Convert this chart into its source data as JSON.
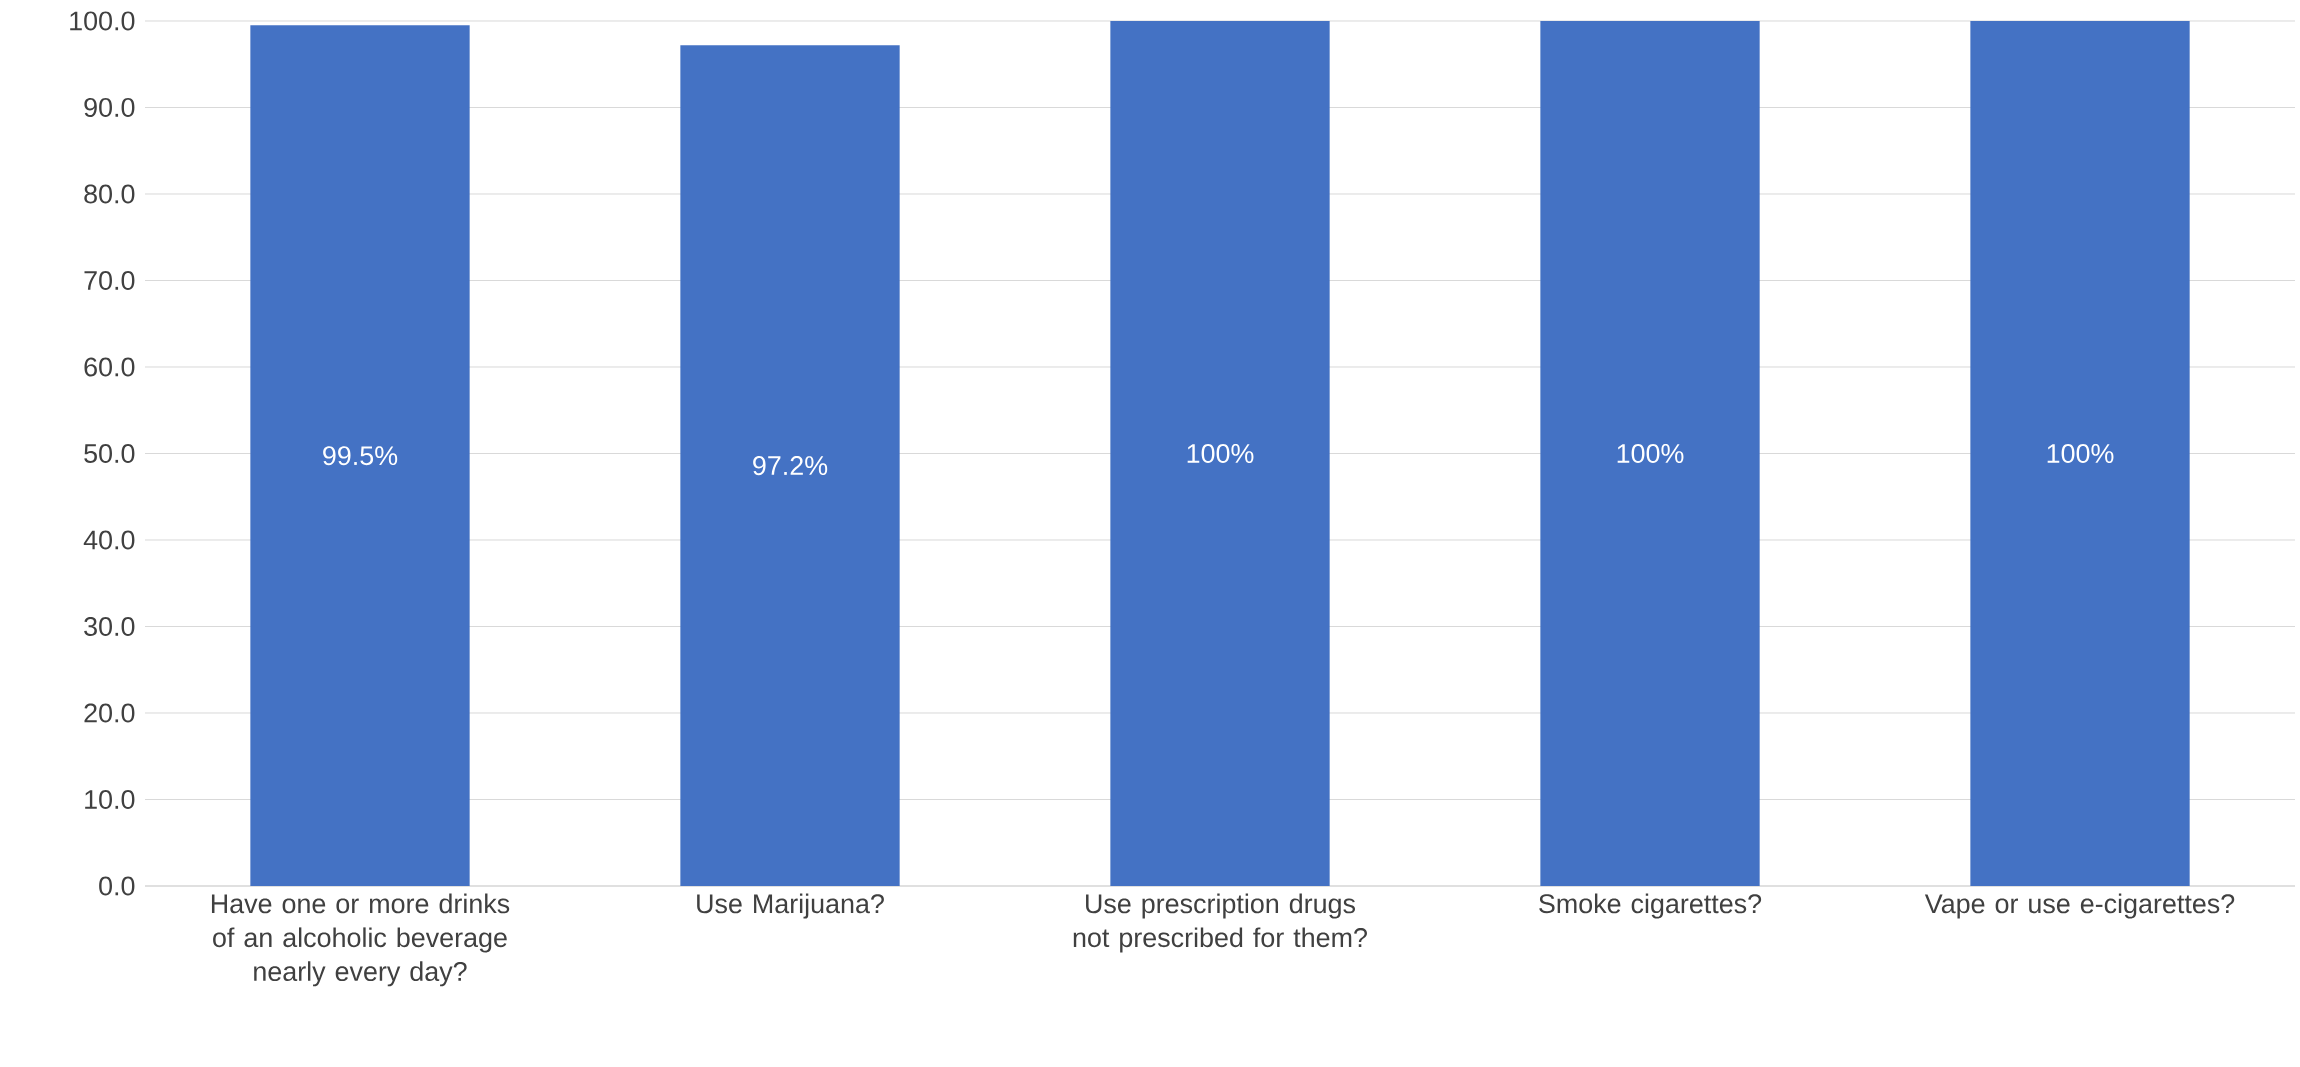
{
  "chart_data": {
    "type": "bar",
    "categories": [
      "Have one or more drinks of an alcoholic beverage nearly every day?",
      "Use Marijuana?",
      "Use prescription drugs not prescribed for them?",
      "Smoke cigarettes?",
      "Vape or use e-cigarettes?"
    ],
    "values": [
      99.5,
      97.2,
      100,
      100,
      100
    ],
    "value_labels": [
      "99.5%",
      "97.2%",
      "100%",
      "100%",
      "100%"
    ],
    "color": "#4472c4",
    "ylim": [
      0,
      100
    ],
    "yticks": [
      {
        "value": 0,
        "label": "0.0"
      },
      {
        "value": 10,
        "label": "10.0"
      },
      {
        "value": 20,
        "label": "20.0"
      },
      {
        "value": 30,
        "label": "30.0"
      },
      {
        "value": 40,
        "label": "40.0"
      },
      {
        "value": 50,
        "label": "50.0"
      },
      {
        "value": 60,
        "label": "60.0"
      },
      {
        "value": 70,
        "label": "70.0"
      },
      {
        "value": 80,
        "label": "80.0"
      },
      {
        "value": 90,
        "label": "90.0"
      },
      {
        "value": 100,
        "label": "100.0"
      }
    ],
    "grid": "y"
  }
}
